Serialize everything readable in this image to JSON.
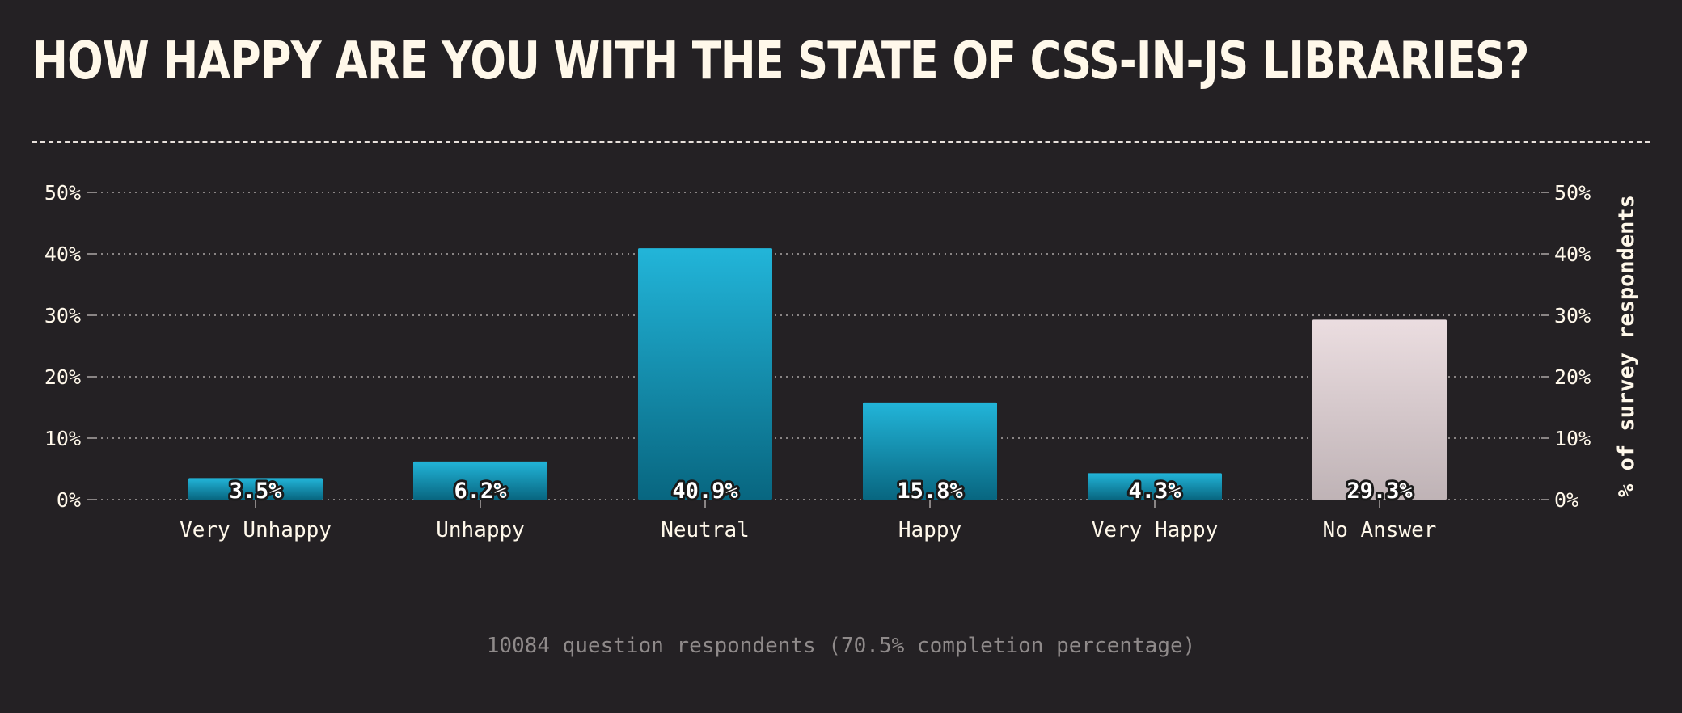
{
  "page": {
    "title": "HOW HAPPY ARE YOU WITH THE STATE OF CSS-IN-JS LIBRARIES?",
    "footnote": "10084 question respondents (70.5% completion percentage)"
  },
  "colors": {
    "background": "#242124",
    "bar_top": "#22b5d9",
    "bar_bottom": "#086680",
    "no_answer_top": "#ebdde0",
    "no_answer_bottom": "#bfb3b6",
    "text": "#fff8ea",
    "grid": "#8a8585"
  },
  "chart_data": {
    "type": "bar",
    "categories": [
      "Very Unhappy",
      "Unhappy",
      "Neutral",
      "Happy",
      "Very Happy",
      "No Answer"
    ],
    "values": [
      3.5,
      6.2,
      40.9,
      15.8,
      4.3,
      29.3
    ],
    "value_labels": [
      "3.5%",
      "6.2%",
      "40.9%",
      "15.8%",
      "4.3%",
      "29.3%"
    ],
    "ylim": [
      0,
      50
    ],
    "yticks": [
      0,
      10,
      20,
      30,
      40,
      50
    ],
    "ytick_labels": [
      "0%",
      "10%",
      "20%",
      "30%",
      "40%",
      "50%"
    ],
    "ylabel": "% of survey respondents",
    "xlabel": "",
    "grid": true,
    "secondary_y_axis": true,
    "highlighted_category": "No Answer"
  }
}
